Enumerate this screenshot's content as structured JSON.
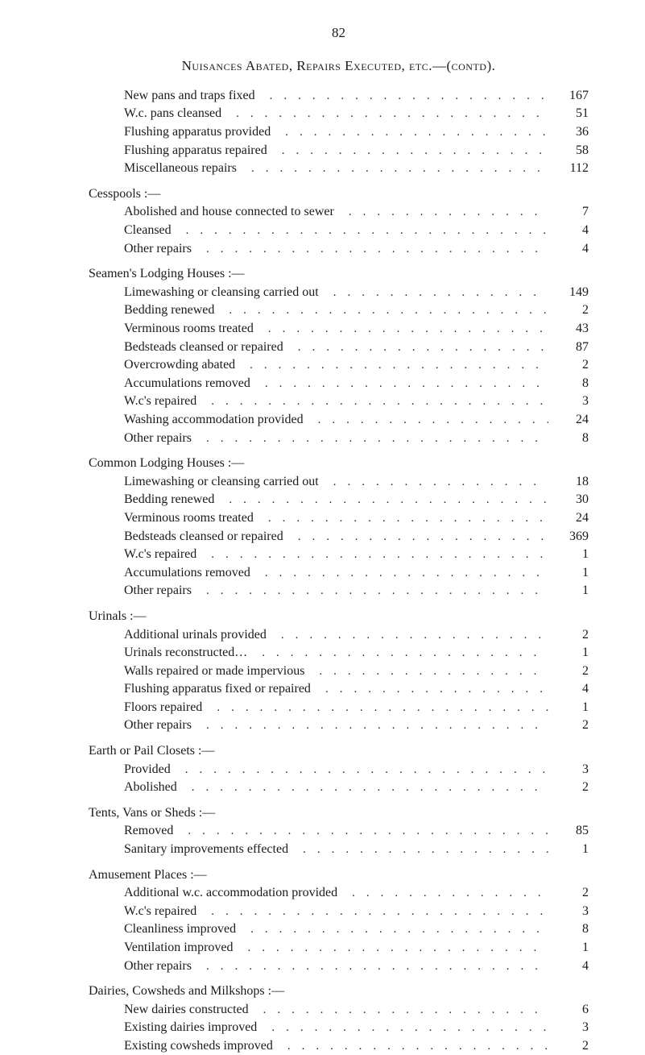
{
  "page_number": "82",
  "main_heading": "Nuisances Abated, Repairs Executed, etc.—(contd).",
  "sections": [
    {
      "title": null,
      "items": [
        {
          "label": "New pans and traps fixed",
          "value": "167"
        },
        {
          "label": "W.c. pans cleansed",
          "value": "51"
        },
        {
          "label": "Flushing apparatus provided",
          "value": "36"
        },
        {
          "label": "Flushing apparatus repaired",
          "value": "58"
        },
        {
          "label": "Miscellaneous repairs",
          "value": "112"
        }
      ]
    },
    {
      "title": "Cesspools :—",
      "items": [
        {
          "label": "Abolished and house connected to sewer",
          "value": "7"
        },
        {
          "label": "Cleansed",
          "value": "4"
        },
        {
          "label": "Other repairs",
          "value": "4"
        }
      ]
    },
    {
      "title": "Seamen's Lodging Houses :—",
      "items": [
        {
          "label": "Limewashing or cleansing carried out",
          "value": "149"
        },
        {
          "label": "Bedding renewed",
          "value": "2"
        },
        {
          "label": "Verminous rooms treated",
          "value": "43"
        },
        {
          "label": "Bedsteads cleansed or repaired",
          "value": "87"
        },
        {
          "label": "Overcrowding abated",
          "value": "2"
        },
        {
          "label": "Accumulations removed",
          "value": "8"
        },
        {
          "label": "W.c's repaired",
          "value": "3"
        },
        {
          "label": "Washing accommodation provided",
          "value": "24"
        },
        {
          "label": "Other repairs",
          "value": "8"
        }
      ]
    },
    {
      "title": "Common Lodging Houses :—",
      "items": [
        {
          "label": "Limewashing or cleansing carried out",
          "value": "18"
        },
        {
          "label": "Bedding renewed",
          "value": "30"
        },
        {
          "label": "Verminous rooms treated",
          "value": "24"
        },
        {
          "label": "Bedsteads cleansed or repaired",
          "value": "369"
        },
        {
          "label": "W.c's repaired",
          "value": "1"
        },
        {
          "label": "Accumulations removed",
          "value": "1"
        },
        {
          "label": "Other repairs",
          "value": "1"
        }
      ]
    },
    {
      "title": "Urinals :—",
      "items": [
        {
          "label": "Additional urinals provided",
          "value": "2"
        },
        {
          "label": "Urinals reconstructed…",
          "value": "1"
        },
        {
          "label": "Walls repaired or made impervious",
          "value": "2"
        },
        {
          "label": "Flushing apparatus fixed or repaired",
          "value": "4"
        },
        {
          "label": "Floors repaired",
          "value": "1"
        },
        {
          "label": "Other repairs",
          "value": "2"
        }
      ]
    },
    {
      "title": "Earth or Pail Closets :—",
      "items": [
        {
          "label": "Provided",
          "value": "3"
        },
        {
          "label": "Abolished",
          "value": "2"
        }
      ]
    },
    {
      "title": "Tents, Vans or Sheds :—",
      "items": [
        {
          "label": "Removed",
          "value": "85"
        },
        {
          "label": "Sanitary improvements effected",
          "value": "1"
        }
      ]
    },
    {
      "title": "Amusement Places :—",
      "items": [
        {
          "label": "Additional w.c. accommodation provided",
          "value": "2"
        },
        {
          "label": "W.c's repaired",
          "value": "3"
        },
        {
          "label": "Cleanliness improved",
          "value": "8"
        },
        {
          "label": "Ventilation improved",
          "value": "1"
        },
        {
          "label": "Other repairs",
          "value": "4"
        }
      ]
    },
    {
      "title": "Dairies, Cowsheds and Milkshops :—",
      "items": [
        {
          "label": "New dairies constructed",
          "value": "6"
        },
        {
          "label": "Existing dairies improved",
          "value": "3"
        },
        {
          "label": "Existing cowsheds improved",
          "value": "2"
        }
      ]
    }
  ]
}
